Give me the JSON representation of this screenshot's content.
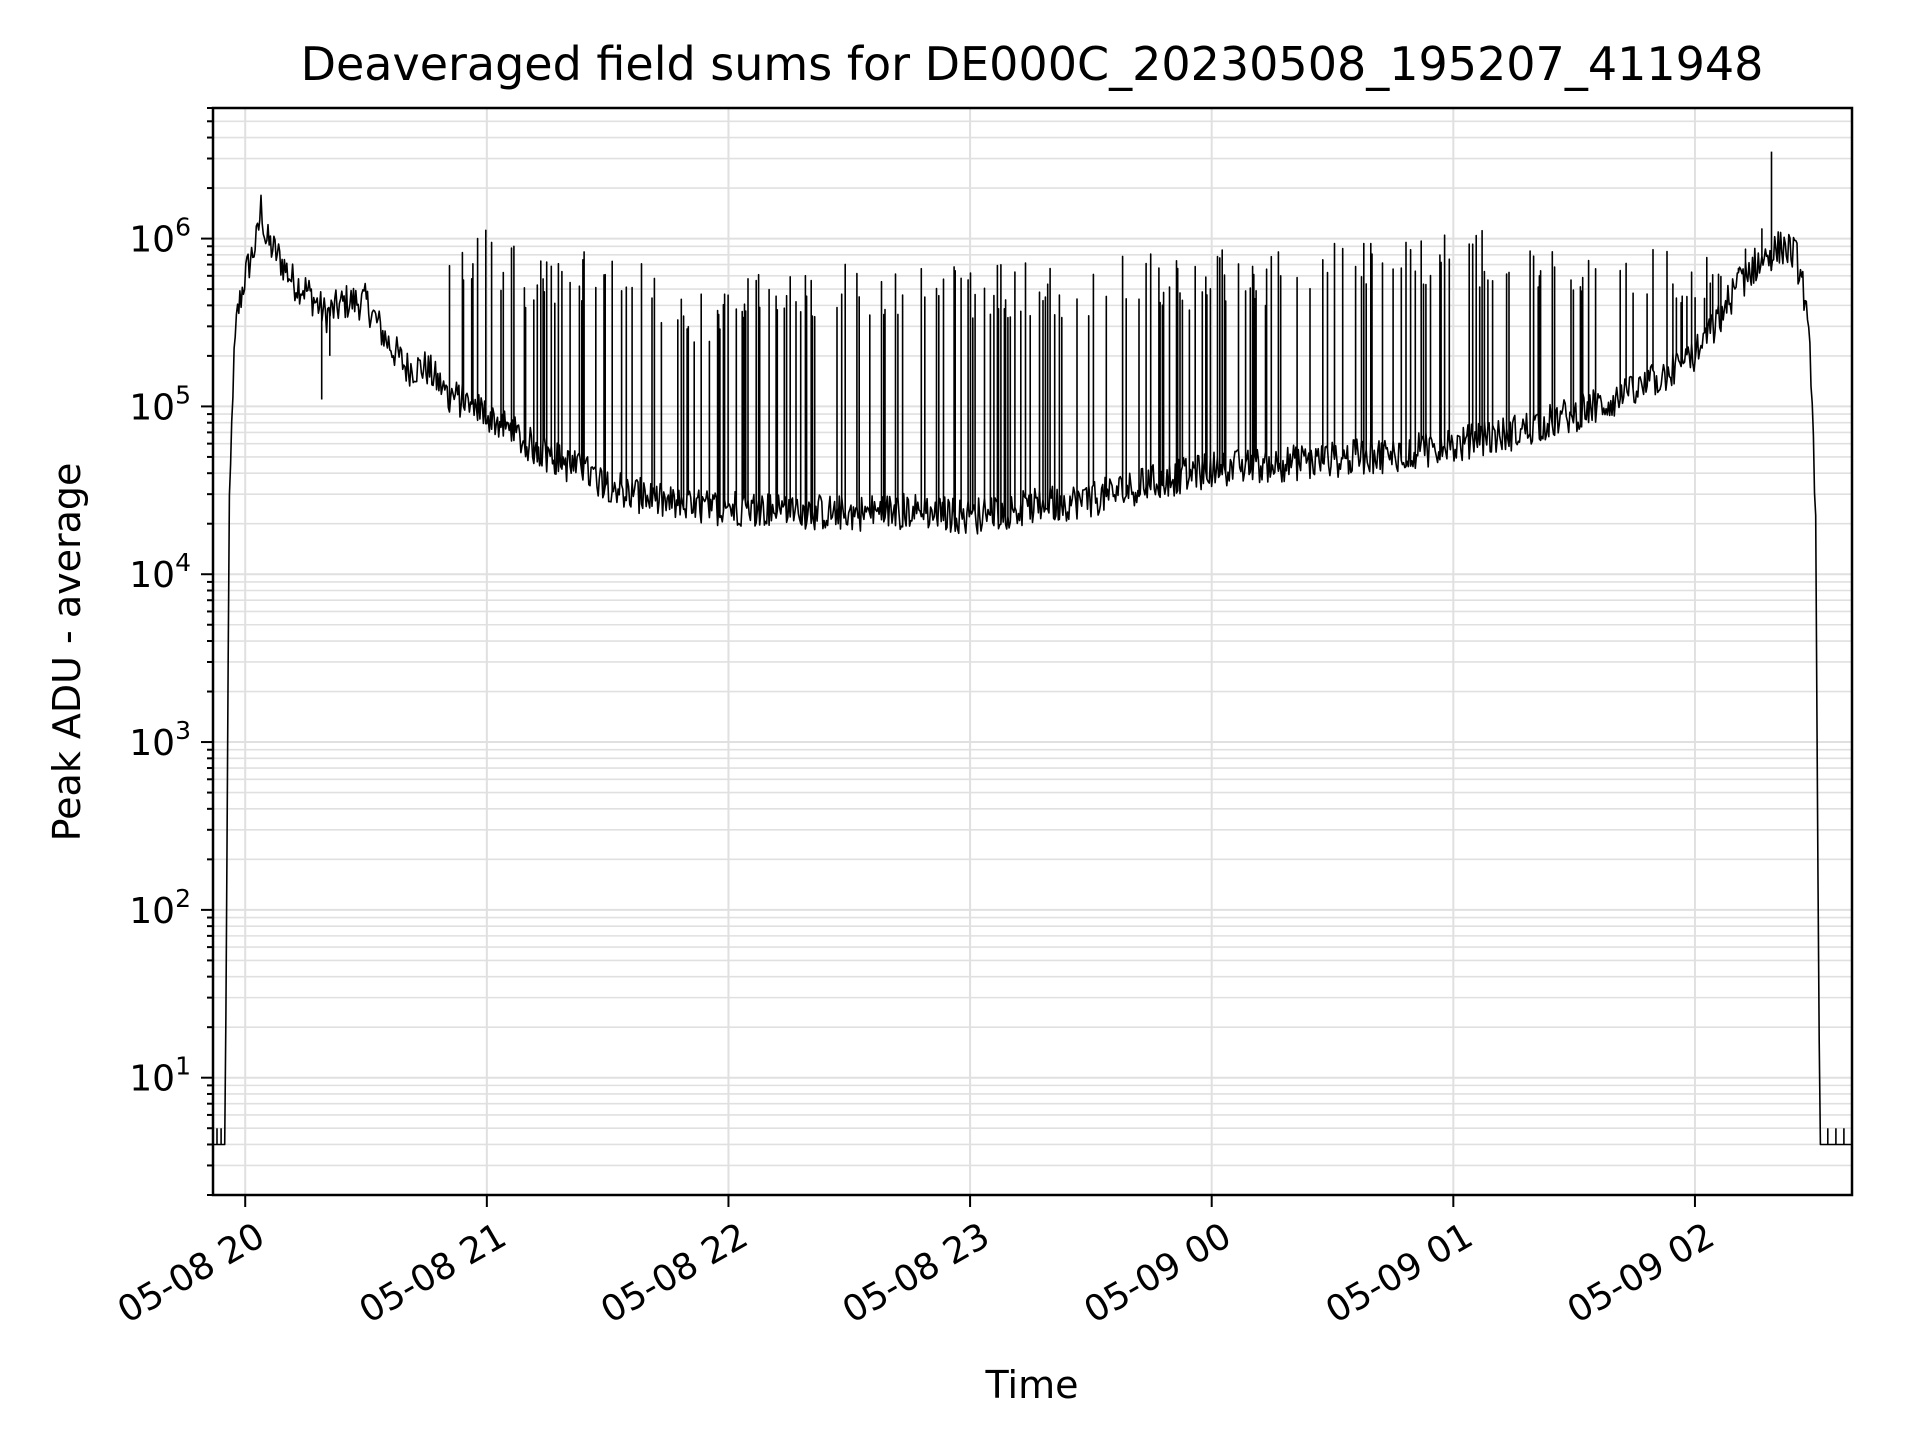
{
  "chart_data": {
    "type": "line",
    "title": "Deaveraged field sums for DE000C_20230508_195207_411948",
    "xlabel": "Time",
    "ylabel": "Peak ADU - average",
    "yscale": "log",
    "ylim": [
      2,
      6000000
    ],
    "xlim": [
      "2023-05-08 19:52",
      "2023-05-09 02:39"
    ],
    "grid": true,
    "line_color": "#000000",
    "grid_color": "#e0e0e0",
    "x_ticks": [
      {
        "t": "2023-05-08 20:00",
        "label": "05-08 20"
      },
      {
        "t": "2023-05-08 21:00",
        "label": "05-08 21"
      },
      {
        "t": "2023-05-08 22:00",
        "label": "05-08 22"
      },
      {
        "t": "2023-05-08 23:00",
        "label": "05-08 23"
      },
      {
        "t": "2023-05-09 00:00",
        "label": "05-09 00"
      },
      {
        "t": "2023-05-09 01:00",
        "label": "05-09 01"
      },
      {
        "t": "2023-05-09 02:00",
        "label": "05-09 02"
      }
    ],
    "y_ticks": [
      {
        "value": 10,
        "base": "10",
        "exp": "1"
      },
      {
        "value": 100,
        "base": "10",
        "exp": "2"
      },
      {
        "value": 1000,
        "base": "10",
        "exp": "3"
      },
      {
        "value": 10000,
        "base": "10",
        "exp": "4"
      },
      {
        "value": 100000,
        "base": "10",
        "exp": "5"
      },
      {
        "value": 1000000,
        "base": "10",
        "exp": "6"
      }
    ],
    "series": [
      {
        "baseline": [
          [
            "2023-05-08 19:52",
            4
          ],
          [
            "2023-05-08 19:55",
            4
          ],
          [
            "2023-05-08 19:56",
            20000
          ],
          [
            "2023-05-08 19:57",
            150000
          ],
          [
            "2023-05-08 19:58",
            350000
          ],
          [
            "2023-05-08 20:00",
            600000
          ],
          [
            "2023-05-08 20:03",
            1000000
          ],
          [
            "2023-05-08 20:04",
            1600000
          ],
          [
            "2023-05-08 20:05",
            1000000
          ],
          [
            "2023-05-08 20:08",
            800000
          ],
          [
            "2023-05-08 20:12",
            550000
          ],
          [
            "2023-05-08 20:15",
            500000
          ],
          [
            "2023-05-08 20:20",
            350000
          ],
          [
            "2023-05-08 20:25",
            420000
          ],
          [
            "2023-05-08 20:30",
            420000
          ],
          [
            "2023-05-08 20:35",
            250000
          ],
          [
            "2023-05-08 20:40",
            170000
          ],
          [
            "2023-05-08 20:45",
            170000
          ],
          [
            "2023-05-08 20:50",
            120000
          ],
          [
            "2023-05-08 21:00",
            90000
          ],
          [
            "2023-05-08 21:10",
            60000
          ],
          [
            "2023-05-08 21:20",
            45000
          ],
          [
            "2023-05-08 21:30",
            35000
          ],
          [
            "2023-05-08 21:40",
            28000
          ],
          [
            "2023-05-08 21:50",
            25000
          ],
          [
            "2023-05-08 22:00",
            25000
          ],
          [
            "2023-05-08 22:15",
            24000
          ],
          [
            "2023-05-08 22:30",
            23000
          ],
          [
            "2023-05-08 22:45",
            24000
          ],
          [
            "2023-05-08 23:00",
            22000
          ],
          [
            "2023-05-08 23:15",
            25000
          ],
          [
            "2023-05-08 23:30",
            28000
          ],
          [
            "2023-05-08 23:45",
            35000
          ],
          [
            "2023-05-09 00:00",
            42000
          ],
          [
            "2023-05-09 00:15",
            45000
          ],
          [
            "2023-05-09 00:30",
            48000
          ],
          [
            "2023-05-09 00:45",
            52000
          ],
          [
            "2023-05-09 01:00",
            58000
          ],
          [
            "2023-05-09 01:15",
            70000
          ],
          [
            "2023-05-09 01:30",
            90000
          ],
          [
            "2023-05-09 01:45",
            120000
          ],
          [
            "2023-05-09 02:00",
            200000
          ],
          [
            "2023-05-09 02:05",
            300000
          ],
          [
            "2023-05-09 02:10",
            500000
          ],
          [
            "2023-05-09 02:15",
            700000
          ],
          [
            "2023-05-09 02:18",
            800000
          ],
          [
            "2023-05-09 02:22",
            900000
          ],
          [
            "2023-05-09 02:25",
            800000
          ],
          [
            "2023-05-09 02:27",
            500000
          ],
          [
            "2023-05-09 02:29",
            150000
          ],
          [
            "2023-05-09 02:30",
            20000
          ],
          [
            "2023-05-09 02:31",
            4
          ],
          [
            "2023-05-09 02:39",
            4
          ]
        ],
        "spikes_top": [
          [
            "2023-05-08 20:50",
            1000000
          ],
          [
            "2023-05-08 20:55",
            1200000
          ],
          [
            "2023-05-08 21:00",
            1200000
          ],
          [
            "2023-05-08 21:05",
            1050000
          ],
          [
            "2023-05-08 21:10",
            850000
          ],
          [
            "2023-05-08 21:20",
            850000
          ],
          [
            "2023-05-08 21:30",
            820000
          ],
          [
            "2023-05-08 21:40",
            800000
          ],
          [
            "2023-05-08 21:50",
            500000
          ],
          [
            "2023-05-08 22:05",
            600000
          ],
          [
            "2023-05-08 22:20",
            700000
          ],
          [
            "2023-05-08 22:40",
            750000
          ],
          [
            "2023-05-08 23:00",
            700000
          ],
          [
            "2023-05-08 23:20",
            750000
          ],
          [
            "2023-05-08 23:40",
            800000
          ],
          [
            "2023-05-09 00:00",
            850000
          ],
          [
            "2023-05-09 00:20",
            900000
          ],
          [
            "2023-05-09 00:40",
            1000000
          ],
          [
            "2023-05-09 01:00",
            1100000
          ],
          [
            "2023-05-09 01:20",
            1150000
          ],
          [
            "2023-05-09 01:40",
            1000000
          ],
          [
            "2023-05-09 02:00",
            850000
          ],
          [
            "2023-05-09 02:14",
            1300000
          ],
          [
            "2023-05-09 02:19",
            3300000
          ]
        ]
      }
    ]
  }
}
